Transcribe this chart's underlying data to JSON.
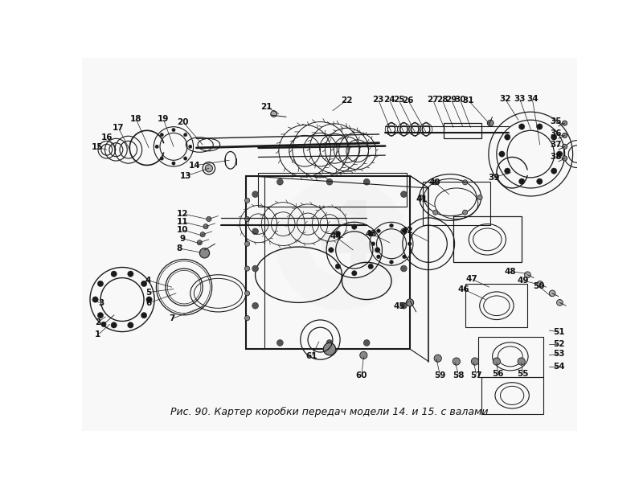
{
  "figure_width": 8.0,
  "figure_height": 6.02,
  "dpi": 100,
  "bg_color": "#ffffff",
  "caption": "Рис. 90. Картер коробки передач модели 14. и 15. с валами",
  "caption_fontsize": 9,
  "caption_color": "#111111",
  "line_color": "#1a1a1a",
  "label_color": "#111111",
  "label_fontsize": 7.5
}
